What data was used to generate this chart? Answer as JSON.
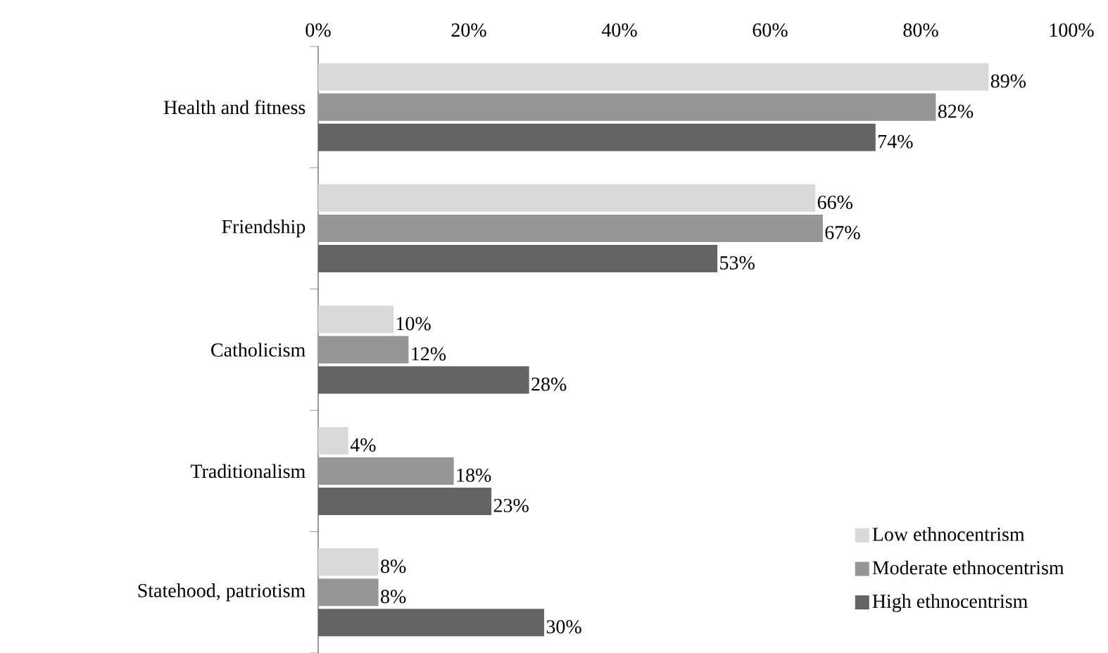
{
  "chart_data": {
    "type": "bar",
    "orientation": "horizontal",
    "categories": [
      "Health and fitness",
      "Friendship",
      "Catholicism",
      "Traditionalism",
      "Statehood, patriotism"
    ],
    "series": [
      {
        "name": "Low ethnocentrism",
        "color": "#d9d9d9",
        "values": [
          89,
          66,
          10,
          4,
          8
        ],
        "value_labels": [
          "89%",
          "66%",
          "10%",
          "4%",
          "8%"
        ]
      },
      {
        "name": "Moderate ethnocentrism",
        "color": "#969696",
        "values": [
          82,
          67,
          12,
          18,
          8
        ],
        "value_labels": [
          "82%",
          "67%",
          "12%",
          "18%",
          "8%"
        ]
      },
      {
        "name": "High ethnocentrism",
        "color": "#646464",
        "values": [
          74,
          53,
          28,
          23,
          30
        ],
        "value_labels": [
          "74%",
          "53%",
          "28%",
          "23%",
          "30%"
        ]
      }
    ],
    "xlim": [
      0,
      100
    ],
    "xticks": [
      {
        "value": 0,
        "label": "0%"
      },
      {
        "value": 20,
        "label": "20%"
      },
      {
        "value": 40,
        "label": "40%"
      },
      {
        "value": 60,
        "label": "60%"
      },
      {
        "value": 80,
        "label": "80%"
      },
      {
        "value": 100,
        "label": "100%"
      }
    ],
    "legend": "bottom right"
  }
}
